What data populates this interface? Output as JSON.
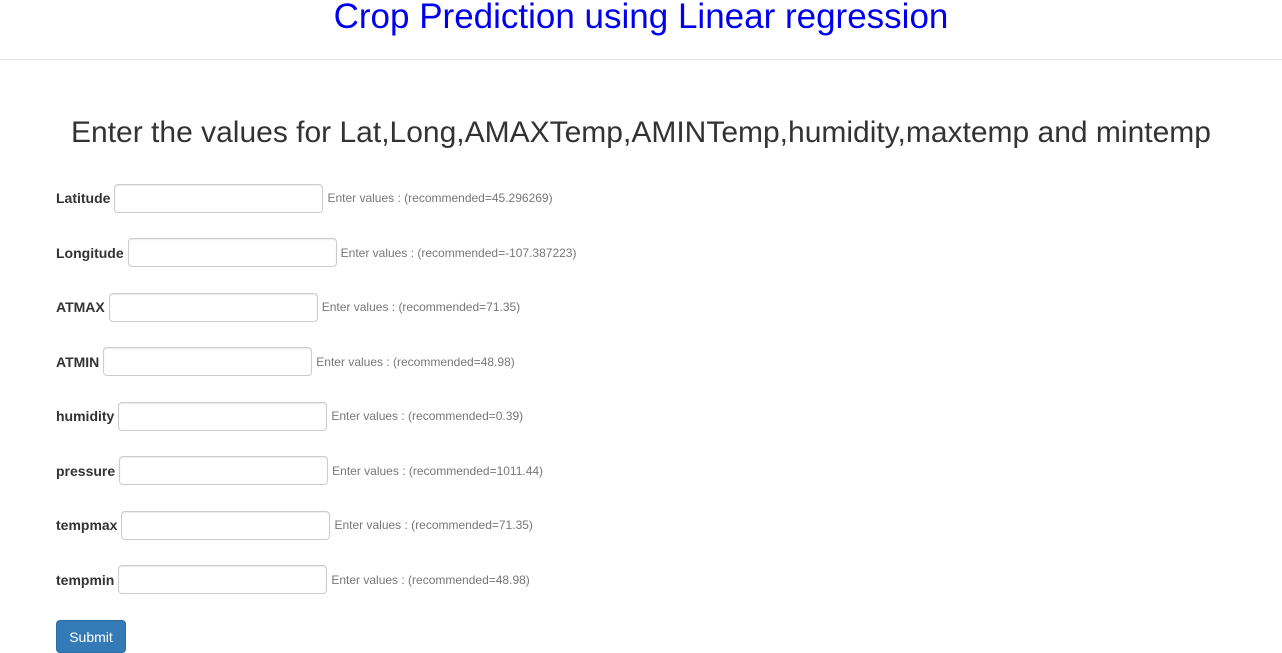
{
  "header": {
    "title": "Crop Prediction using Linear regression"
  },
  "main": {
    "subtitle": "Enter the values for Lat,Long,AMAXTemp,AMINTemp,humidity,maxtemp and mintemp",
    "fields": [
      {
        "label": "Latitude",
        "value": "",
        "hint": "Enter values : (recommended=45.296269)"
      },
      {
        "label": "Longitude",
        "value": "",
        "hint": "Enter values : (recommended=-107.387223)"
      },
      {
        "label": "ATMAX",
        "value": "",
        "hint": "Enter values : (recommended=71.35)"
      },
      {
        "label": "ATMIN",
        "value": "",
        "hint": "Enter values : (recommended=48.98)"
      },
      {
        "label": "humidity",
        "value": "",
        "hint": "Enter values : (recommended=0.39)"
      },
      {
        "label": "pressure",
        "value": "",
        "hint": "Enter values : (recommended=1011.44)"
      },
      {
        "label": "tempmax",
        "value": "",
        "hint": "Enter values : (recommended=71.35)"
      },
      {
        "label": "tempmin",
        "value": "",
        "hint": "Enter values : (recommended=48.98)"
      }
    ],
    "submit_label": "Submit"
  },
  "colors": {
    "title": "#0000ee",
    "button": "#337ab7",
    "text": "#333333",
    "hint": "#777777"
  }
}
